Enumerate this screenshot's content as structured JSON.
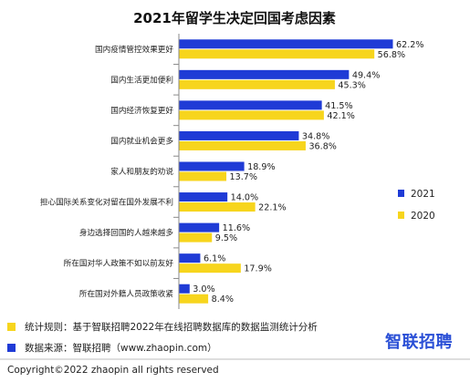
{
  "colors": {
    "y2021": "#1f3bd6",
    "y2020": "#f7d51d",
    "axis": "#8a8a8a",
    "divider": "#bdbdbd"
  },
  "chart_data": {
    "type": "bar",
    "orientation": "horizontal",
    "title": "2021年留学生决定回国考虑因素",
    "categories": [
      "国内疫情管控效果更好",
      "国内生活更加便利",
      "国内经济恢复更好",
      "国内就业机会更多",
      "家人和朋友的劝说",
      "担心国际关系变化对留在国外发展不利",
      "身边选择回国的人越来越多",
      "所在国对华人政策不如以前友好",
      "所在国对外籍人员政策收紧"
    ],
    "series": [
      {
        "name": "2021",
        "values": [
          62.2,
          49.4,
          41.5,
          34.8,
          18.9,
          14.0,
          11.6,
          6.1,
          3.0
        ],
        "labels": [
          "62.2%",
          "49.4%",
          "41.5%",
          "34.8%",
          "18.9%",
          "14.0%",
          "11.6%",
          "6.1%",
          "3.0%"
        ]
      },
      {
        "name": "2020",
        "values": [
          56.8,
          45.3,
          42.1,
          36.8,
          13.7,
          22.1,
          9.5,
          17.9,
          8.4
        ],
        "labels": [
          "56.8%",
          "45.3%",
          "42.1%",
          "36.8%",
          "13.7%",
          "22.1%",
          "9.5%",
          "17.9%",
          "8.4%"
        ]
      }
    ],
    "xlim": [
      0,
      65
    ],
    "grid": false,
    "legend_position": "right"
  },
  "footer": {
    "rule": "统计规则：基于智联招聘2022年在线招聘数据库的数据监测统计分析",
    "source": "数据来源：智联招聘（www.zhaopin.com）",
    "brand": "智联招聘",
    "copyright": "Copyright©2022 zhaopin all rights reserved"
  }
}
